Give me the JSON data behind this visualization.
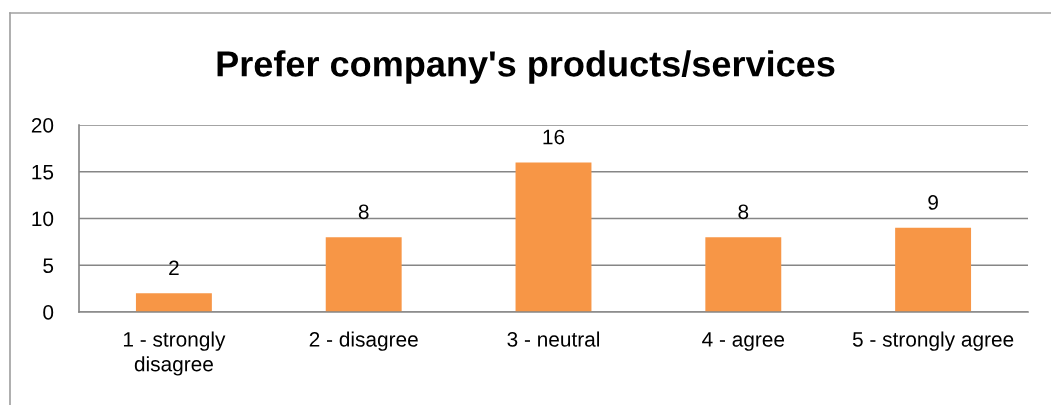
{
  "chart_data": {
    "type": "bar",
    "title": "Prefer company's products/services",
    "categories": [
      "1 - strongly\ndisagree",
      "2 - disagree",
      "3 - neutral",
      "4 - agree",
      "5 - strongly agree"
    ],
    "values": [
      2,
      8,
      16,
      8,
      9
    ],
    "color": "#f79646",
    "ylim": [
      0,
      20
    ],
    "yticks": [
      0,
      5,
      10,
      15,
      20
    ],
    "grid": "y",
    "data_labels": true,
    "legend": false
  }
}
